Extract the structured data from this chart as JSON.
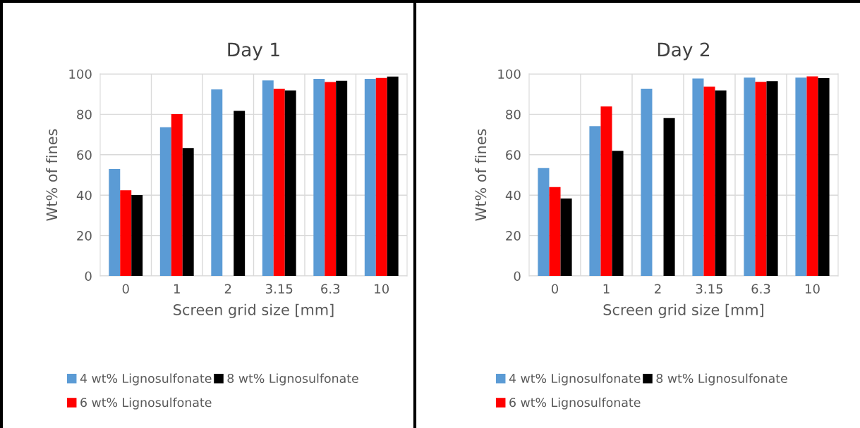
{
  "chart_data": [
    {
      "type": "bar",
      "title": "Day 1",
      "xlabel": "Screen grid size [mm]",
      "ylabel": "Wt% of fines",
      "categories": [
        "0",
        "1",
        "2",
        "3.15",
        "6.3",
        "10"
      ],
      "ylim": [
        0,
        100
      ],
      "yticks": [
        0,
        20,
        40,
        60,
        80,
        100
      ],
      "grid": true,
      "legend": "bottom",
      "series": [
        {
          "name": "4 wt% Lignosulfonate",
          "color": "#5b9bd5",
          "values": [
            53.0,
            73.6,
            92.3,
            96.8,
            97.6,
            97.6
          ]
        },
        {
          "name": "6 wt% Lignosulfonate",
          "color": "#ff0000",
          "values": [
            42.4,
            80.1,
            null,
            92.7,
            96.0,
            98.0
          ]
        },
        {
          "name": "8 wt% Lignosulfonate",
          "color": "#000000",
          "values": [
            40.1,
            63.3,
            81.7,
            91.8,
            96.6,
            98.7
          ]
        }
      ]
    },
    {
      "type": "bar",
      "title": "Day 2",
      "xlabel": "Screen grid size [mm]",
      "ylabel": "Wt% of fines",
      "categories": [
        "0",
        "1",
        "2",
        "3.15",
        "6.3",
        "10"
      ],
      "ylim": [
        0,
        100
      ],
      "yticks": [
        0,
        20,
        40,
        60,
        80,
        100
      ],
      "grid": true,
      "legend": "bottom",
      "series": [
        {
          "name": "4 wt% Lignosulfonate",
          "color": "#5b9bd5",
          "values": [
            53.4,
            74.1,
            92.7,
            97.7,
            98.2,
            98.2
          ]
        },
        {
          "name": "6 wt% Lignosulfonate",
          "color": "#ff0000",
          "values": [
            44.0,
            83.9,
            null,
            93.7,
            96.1,
            98.8
          ]
        },
        {
          "name": "8 wt% Lignosulfonate",
          "color": "#000000",
          "values": [
            38.3,
            61.9,
            78.1,
            91.8,
            96.4,
            97.9
          ]
        }
      ]
    }
  ]
}
